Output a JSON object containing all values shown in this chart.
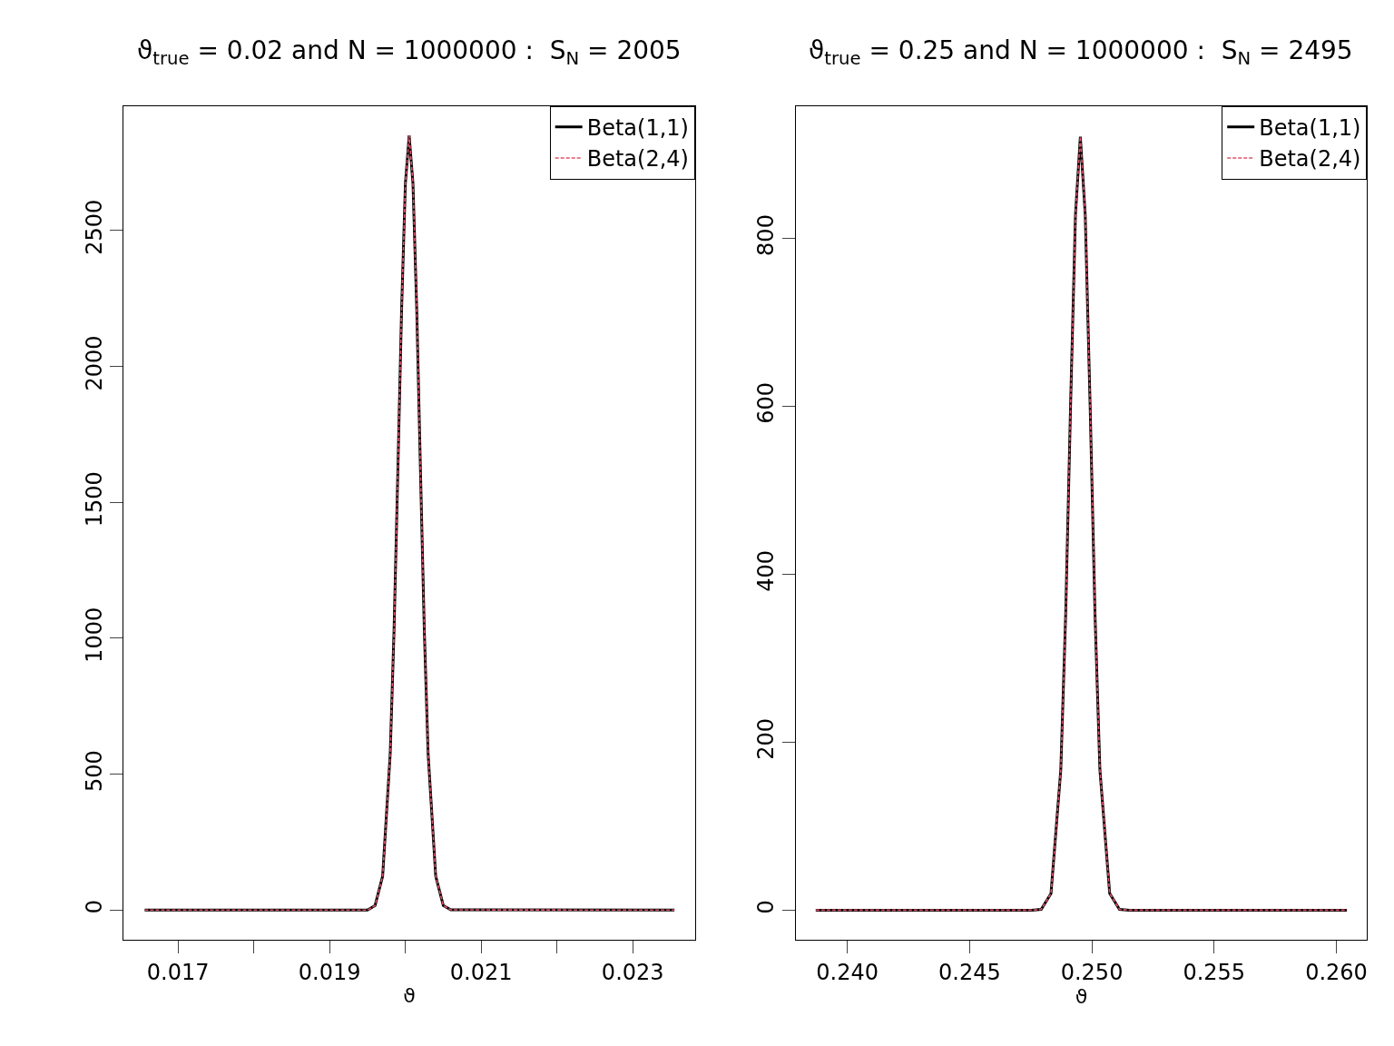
{
  "chart_data": [
    {
      "type": "line",
      "title": "ϑ$_{true}$ = 0.02 and N = 1000000 :  S$_{N}$ = 2005",
      "xlabel": "ϑ",
      "xlim": [
        0.016283,
        0.02382
      ],
      "ylim": [
        -110,
        2958
      ],
      "xticks": [
        0.017,
        {
          "value": 0.018,
          "label": null
        },
        0.019,
        {
          "value": 0.02,
          "label": null
        },
        0.021,
        {
          "value": 0.022,
          "label": null
        },
        0.023
      ],
      "yticks": [
        0,
        500,
        1000,
        1500,
        2000,
        2500
      ],
      "x": [
        0.01656,
        0.0195,
        0.0196,
        0.0197,
        0.0198,
        0.01985,
        0.0199,
        0.01995,
        0.02,
        0.02005,
        0.0201,
        0.02015,
        0.0202,
        0.02025,
        0.0203,
        0.0204,
        0.0205,
        0.0206,
        0.02355
      ],
      "series": [
        {
          "name": "Beta(1,1)",
          "color": "#000000",
          "line_style": "solid",
          "values": [
            0,
            0,
            17,
            125,
            575,
            1026,
            1607,
            2208,
            2673,
            2850,
            2673,
            2208,
            1607,
            1026,
            575,
            125,
            17,
            1,
            0
          ]
        },
        {
          "name": "Beta(2,4)",
          "color": "#df536b",
          "line_style": "dashed",
          "values": [
            0,
            0,
            17,
            125,
            575,
            1026,
            1607,
            2208,
            2673,
            2850,
            2673,
            2208,
            1607,
            1026,
            575,
            125,
            17,
            1,
            0
          ]
        }
      ],
      "legend": "top right"
    },
    {
      "type": "line",
      "title": "ϑ$_{true}$ = 0.25 and N = 1000000 :  S$_{N}$ = 2495",
      "xlabel": "ϑ",
      "xlim": [
        0.23789,
        0.26125
      ],
      "ylim": [
        -35.5,
        957.7
      ],
      "xticks": [
        {
          "value": 0.24,
          "label": "0.240"
        },
        0.245,
        {
          "value": 0.25,
          "label": "0.250"
        },
        0.255,
        {
          "value": 0.26,
          "label": "0.260"
        }
      ],
      "yticks": [
        0,
        200,
        400,
        600,
        800
      ],
      "x": [
        0.23871,
        0.24753,
        0.24793,
        0.24833,
        0.24873,
        0.24893,
        0.24913,
        0.24933,
        0.24953,
        0.24973,
        0.24993,
        0.25013,
        0.25033,
        0.25073,
        0.25113,
        0.25153,
        0.26043
      ],
      "series": [
        {
          "name": "Beta(1,1)",
          "color": "#000000",
          "line_style": "solid",
          "values": [
            0,
            0,
            1,
            20,
            167,
            352,
            601,
            828,
            921,
            828,
            601,
            352,
            167,
            20,
            1,
            0,
            0
          ]
        },
        {
          "name": "Beta(2,4)",
          "color": "#df536b",
          "line_style": "dashed",
          "values": [
            0,
            0,
            1,
            20,
            167,
            352,
            601,
            828,
            921,
            828,
            601,
            352,
            167,
            20,
            1,
            0,
            0
          ]
        }
      ],
      "legend": "top right"
    }
  ]
}
